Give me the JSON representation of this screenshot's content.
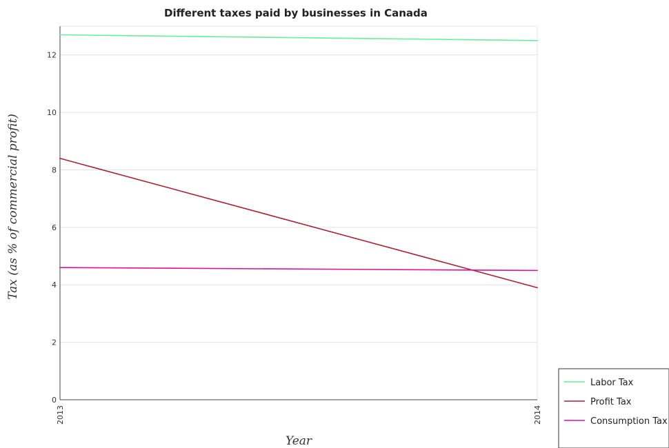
{
  "chart_data": {
    "type": "line",
    "title": "Different taxes paid by businesses in Canada",
    "xlabel": "Year",
    "ylabel": "Tax (as % of commercial profit)",
    "x": [
      "2013",
      "2014"
    ],
    "ylim": [
      0,
      13
    ],
    "yticks": [
      0,
      2,
      4,
      6,
      8,
      10,
      12
    ],
    "grid": true,
    "legend_position": "bottom-right",
    "series": [
      {
        "name": "Labor Tax",
        "color": "#66ee99",
        "values": [
          12.7,
          12.5
        ]
      },
      {
        "name": "Profit Tax",
        "color": "#aa2233",
        "values": [
          8.4,
          3.9
        ]
      },
      {
        "name": "Consumption Tax",
        "color": "#dd1199",
        "values": [
          4.6,
          4.5
        ]
      }
    ]
  }
}
